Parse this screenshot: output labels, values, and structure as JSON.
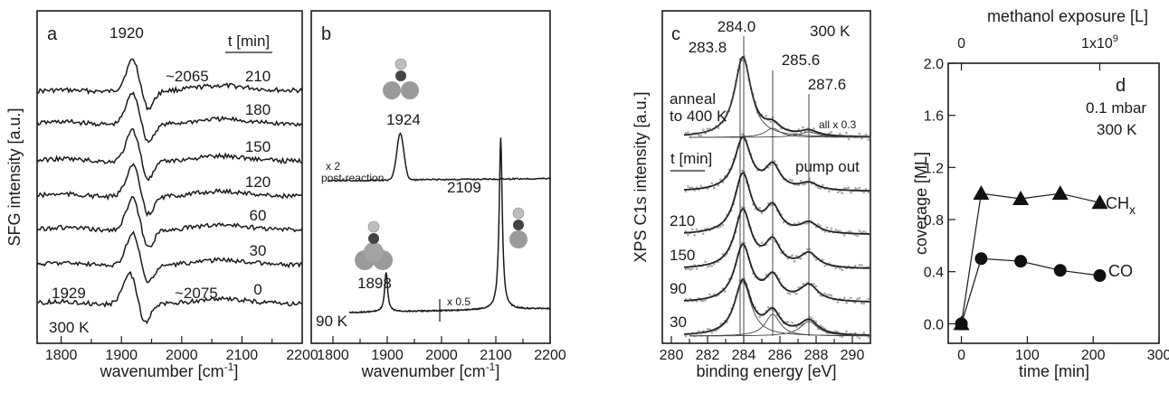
{
  "chart_data": [
    {
      "panel": "a",
      "type": "line",
      "xlabel": "wavenumber [cm",
      "xlabel_sup": "-1",
      "xlabel_end": "]",
      "ylabel": "SFG intensity [a.u.]",
      "xlim": [
        1760,
        2200
      ],
      "xticks": [
        "1800",
        "1900",
        "2000",
        "2100",
        "2200"
      ],
      "legend_title": "t [min]",
      "series": [
        {
          "name": "210",
          "peak": 1920
        },
        {
          "name": "180",
          "peak": 1920
        },
        {
          "name": "150",
          "peak": 1920
        },
        {
          "name": "120",
          "peak": 1920
        },
        {
          "name": "60",
          "peak": 1920
        },
        {
          "name": "30",
          "peak": 1920
        },
        {
          "name": "0",
          "peak": 1915
        }
      ],
      "annotations": {
        "peak_top": "1920",
        "broad_top": "~2065",
        "peak_bottom": "1929",
        "broad_bottom": "~2075",
        "temp": "300 K"
      }
    },
    {
      "panel": "b",
      "type": "line",
      "xlabel": "wavenumber [cm",
      "xlabel_sup": "-1",
      "xlabel_end": "]",
      "xlim": [
        1760,
        2200
      ],
      "xticks": [
        "1800",
        "1900",
        "2000",
        "2100",
        "2200"
      ],
      "series": [
        {
          "name": "post-reaction",
          "peaks": [
            1924
          ]
        },
        {
          "name": "90 K",
          "peaks": [
            1898,
            2109
          ]
        }
      ],
      "annotations": {
        "peak_top": "1924",
        "scale_top": "x 2",
        "label_mid": "post-reaction",
        "peak_1": "1898",
        "peak_2": "2109",
        "scale_bottom": "x 0.5",
        "temp": "90 K"
      }
    },
    {
      "panel": "c",
      "type": "line",
      "xlabel": "binding energy [eV]",
      "ylabel": "XPS C1s intensity [a.u.]",
      "xlim": [
        279.5,
        291
      ],
      "xticks": [
        "280",
        "282",
        "284",
        "286",
        "288",
        "290"
      ],
      "reference_lines": [
        283.8,
        284.0,
        285.6,
        287.6
      ],
      "legend_title": "t [min]",
      "series": [
        {
          "name": "anneal to 400 K"
        },
        {
          "name": "pump out"
        },
        {
          "name": "210"
        },
        {
          "name": "150"
        },
        {
          "name": "90"
        },
        {
          "name": "30"
        }
      ],
      "annotations": {
        "e1": "283.8",
        "e2": "284.0",
        "e3": "285.6",
        "e4": "287.6",
        "temp": "300 K",
        "anneal_1": "anneal",
        "anneal_2": "to 400 K",
        "scale": "all x 0.3",
        "pump": "pump out"
      }
    },
    {
      "panel": "d",
      "type": "scatter",
      "xlabel": "time [min]",
      "ylabel": "coverage [ML]",
      "top_xlabel": "methanol exposure [L]",
      "xlim": [
        -20,
        300
      ],
      "ylim": [
        -0.15,
        2.0
      ],
      "xticks": [
        0,
        100,
        200,
        300
      ],
      "yticks": [
        "0.0",
        "0.4",
        "0.8",
        "1.2",
        "1.6",
        "2.0"
      ],
      "top_ticks": [
        "0",
        "1x10"
      ],
      "top_tick_sup": "9",
      "series": [
        {
          "name": "CH",
          "name_sub": "x",
          "marker": "triangle",
          "x": [
            0,
            30,
            90,
            150,
            210
          ],
          "y": [
            0.0,
            1.0,
            0.96,
            1.0,
            0.93
          ]
        },
        {
          "name": "CO",
          "marker": "circle",
          "x": [
            0,
            30,
            90,
            150,
            210
          ],
          "y": [
            0.0,
            0.5,
            0.48,
            0.41,
            0.37
          ]
        }
      ],
      "annotations": {
        "pressure": "0.1 mbar",
        "temp": "300 K"
      }
    }
  ],
  "panel_labels": [
    "a",
    "b",
    "c",
    "d"
  ]
}
